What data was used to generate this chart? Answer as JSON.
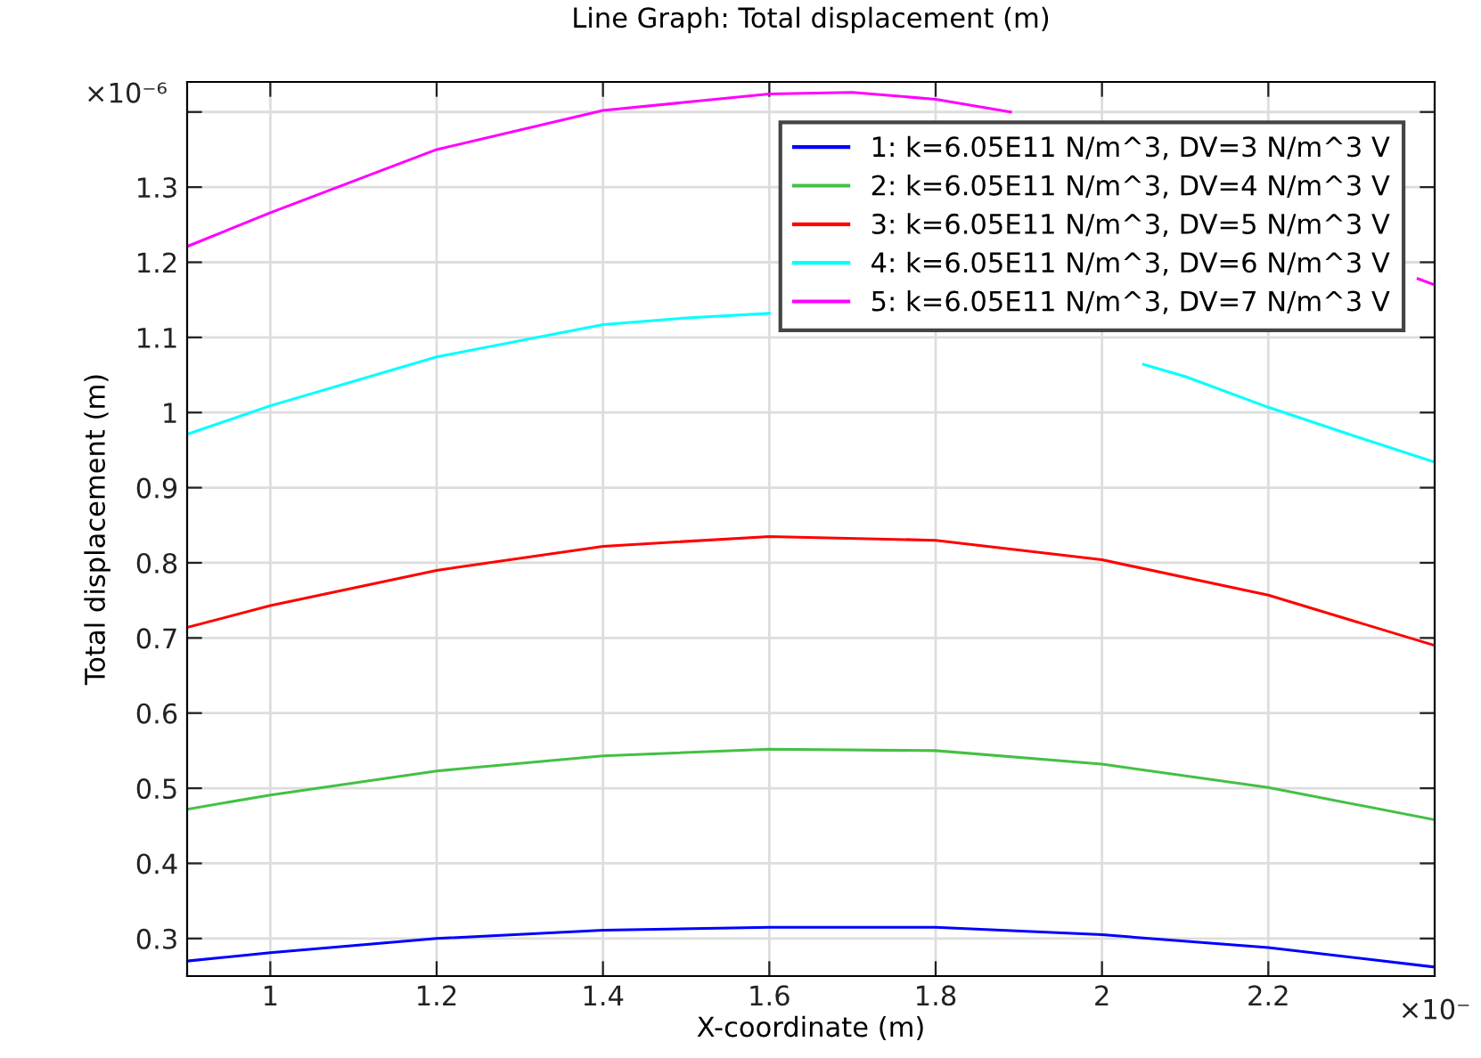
{
  "chart_data": {
    "type": "line",
    "title": "Line Graph: Total displacement (m)",
    "xlabel": "X-coordinate (m)",
    "ylabel": "Total displacement (m)",
    "annotations": [
      "×10⁻⁶",
      "×10⁻"
    ],
    "xlim": [
      0.9,
      2.4
    ],
    "ylim": [
      0.25,
      1.44
    ],
    "xticks": [
      1,
      1.2,
      1.4,
      1.6,
      1.8,
      2,
      2.2
    ],
    "yticks": [
      0.3,
      0.4,
      0.5,
      0.6,
      0.7,
      0.8,
      0.9,
      1,
      1.1,
      1.2,
      1.3,
      {
        "value": 1.4,
        "label": null
      }
    ],
    "grid": true,
    "legend": "top right",
    "line_style": "solid",
    "marker": "none",
    "series": [
      {
        "name": "1: k=6.05E11 N/m^3, DV=3 N/m^3 V",
        "color": "#0000ff",
        "x": [
          0.9,
          1.0,
          1.2,
          1.4,
          1.6,
          1.8,
          2.0,
          2.2,
          2.4
        ],
        "values": [
          0.27,
          0.281,
          0.3,
          0.311,
          0.315,
          0.315,
          0.305,
          0.288,
          0.262
        ]
      },
      {
        "name": "2: k=6.05E11 N/m^3, DV=4 N/m^3 V",
        "color": "#44c044",
        "x": [
          0.9,
          1.0,
          1.2,
          1.4,
          1.6,
          1.8,
          2.0,
          2.2,
          2.4
        ],
        "values": [
          0.472,
          0.491,
          0.523,
          0.543,
          0.552,
          0.55,
          0.532,
          0.501,
          0.458
        ]
      },
      {
        "name": "3: k=6.05E11 N/m^3, DV=5 N/m^3 V",
        "color": "#ff0000",
        "x": [
          0.9,
          1.0,
          1.2,
          1.4,
          1.6,
          1.8,
          2.0,
          2.2,
          2.4
        ],
        "values": [
          0.714,
          0.743,
          0.79,
          0.822,
          0.835,
          0.83,
          0.804,
          0.757,
          0.69
        ]
      },
      {
        "name": "4: k=6.05E11 N/m^3, DV=6 N/m^3 V",
        "color": "#00ffff",
        "x": [
          0.9,
          1.0,
          1.2,
          1.4,
          1.5,
          1.6,
          1.8,
          2.05,
          2.1,
          2.2,
          2.3,
          2.4
        ],
        "values": [
          0.971,
          1.009,
          1.074,
          1.117,
          1.126,
          1.132,
          null,
          1.064,
          1.048,
          1.007,
          0.97,
          0.934
        ]
      },
      {
        "name": "5: k=6.05E11 N/m^3, DV=7 N/m^3 V",
        "color": "#ff00ff",
        "x": [
          0.9,
          1.0,
          1.2,
          1.4,
          1.6,
          1.7,
          1.8,
          1.89,
          2.1,
          2.38,
          2.4
        ],
        "values": [
          1.221,
          1.266,
          1.35,
          1.402,
          1.424,
          1.426,
          1.417,
          1.4,
          null,
          1.178,
          1.17
        ]
      }
    ]
  }
}
